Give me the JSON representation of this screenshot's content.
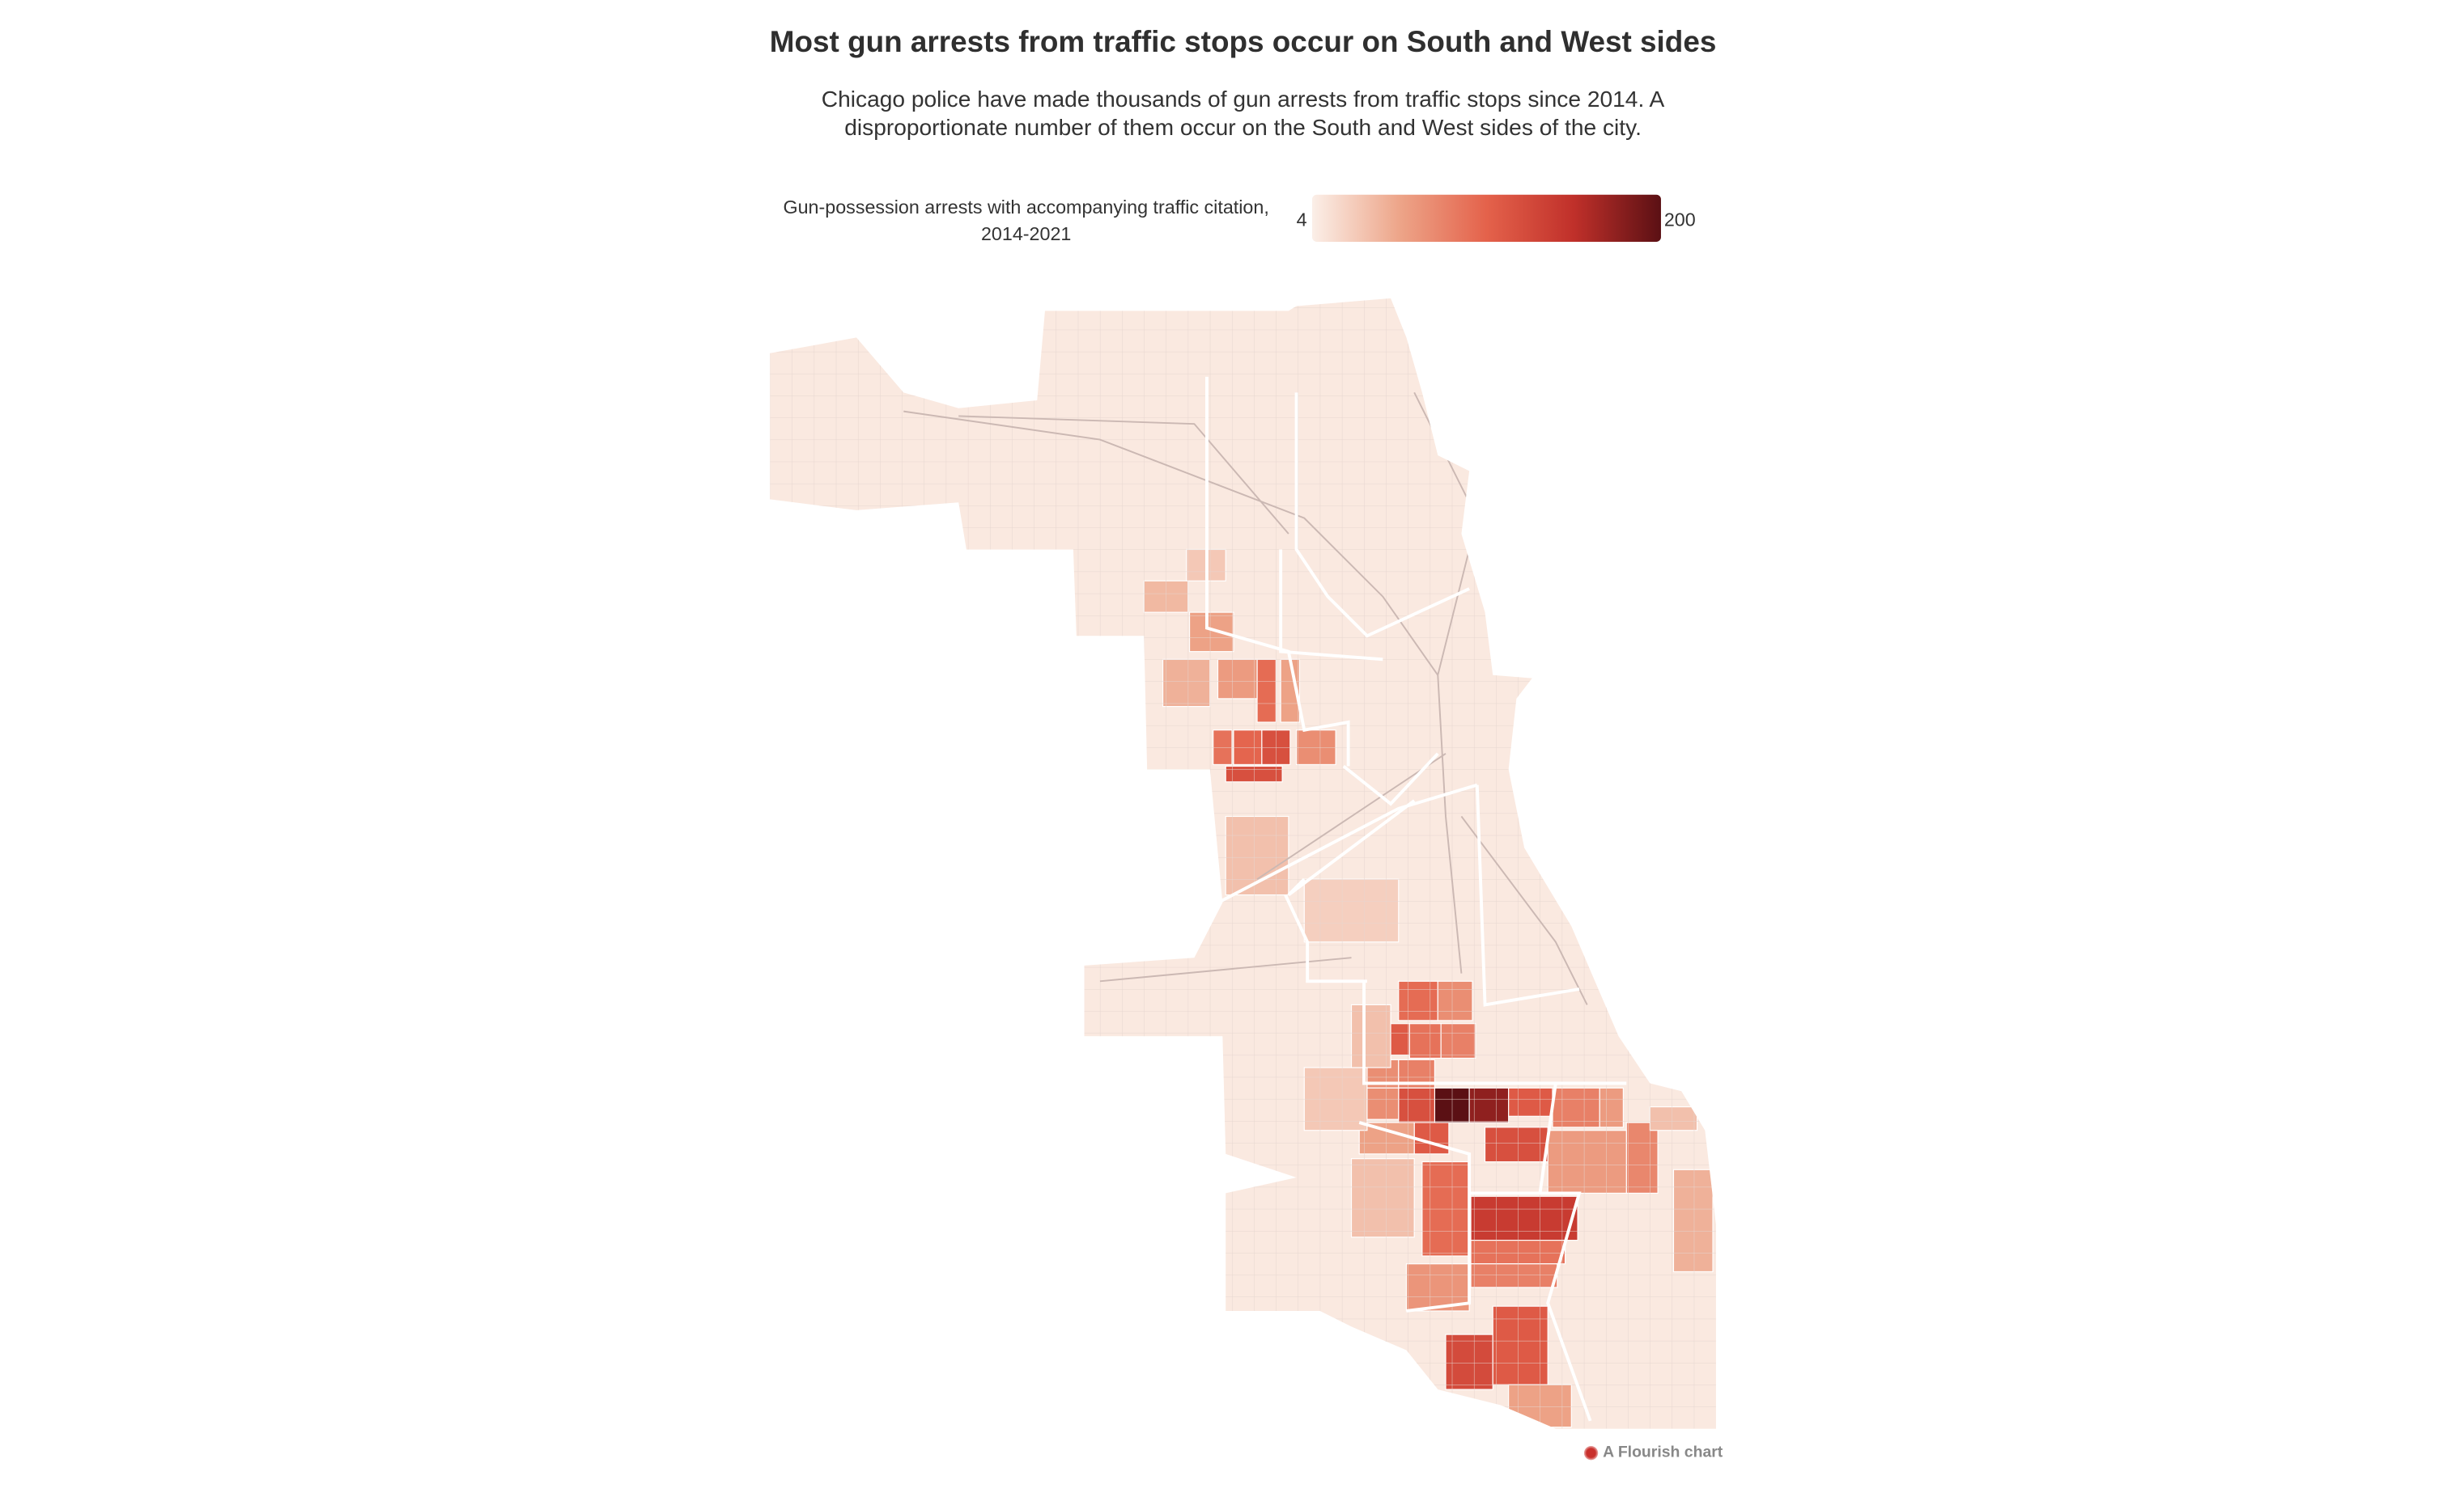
{
  "title": "Most gun arrests from traffic stops occur on South and West sides",
  "subtitle": "Chicago police have made thousands of gun arrests from traffic stops since 2014. A disproportionate number of them occur on the South and West sides of the city.",
  "credit": "A Flourish chart",
  "chart_data": {
    "type": "heatmap",
    "subtype": "choropleth-map",
    "title": "Most gun arrests from traffic stops occur on South and West sides",
    "legend": {
      "title": "Gun-possession arrests with accompanying traffic citation, 2014-2021",
      "min": 4,
      "max": 200,
      "min_label": "4",
      "max_label": "200",
      "colors": [
        "#fbefe8",
        "#eda589",
        "#e4624b",
        "#c0302a",
        "#5b1014"
      ],
      "placement": "top-center"
    },
    "base_value": 8,
    "region_values": [
      120,
      90,
      100,
      120,
      95,
      60,
      45,
      55,
      40,
      30,
      70,
      55,
      95,
      70,
      110,
      90,
      80,
      70,
      80,
      200,
      175,
      120,
      70,
      110,
      110,
      120,
      55,
      80,
      60,
      75,
      60,
      140,
      90,
      80,
      95,
      65,
      125,
      110,
      55,
      35,
      45,
      35,
      30,
      35,
      25,
      35
    ]
  }
}
